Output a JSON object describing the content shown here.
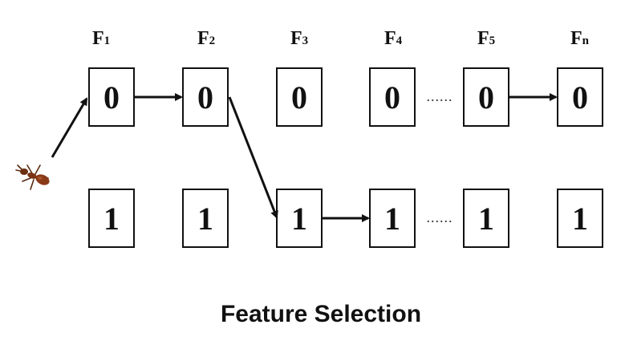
{
  "features": [
    {
      "letter": "F",
      "sub": "1"
    },
    {
      "letter": "F",
      "sub": "2"
    },
    {
      "letter": "F",
      "sub": "3"
    },
    {
      "letter": "F",
      "sub": "4"
    },
    {
      "letter": "F",
      "sub": "5"
    },
    {
      "letter": "F",
      "sub": "n"
    }
  ],
  "rows": [
    {
      "value": "0"
    },
    {
      "value": "1"
    }
  ],
  "ellipsis": "......",
  "caption": "Feature Selection",
  "selected_path": [
    {
      "feature": "F1",
      "value": "0"
    },
    {
      "feature": "F2",
      "value": "0"
    },
    {
      "feature": "F3",
      "value": "1"
    },
    {
      "feature": "F4",
      "value": "1"
    }
  ]
}
